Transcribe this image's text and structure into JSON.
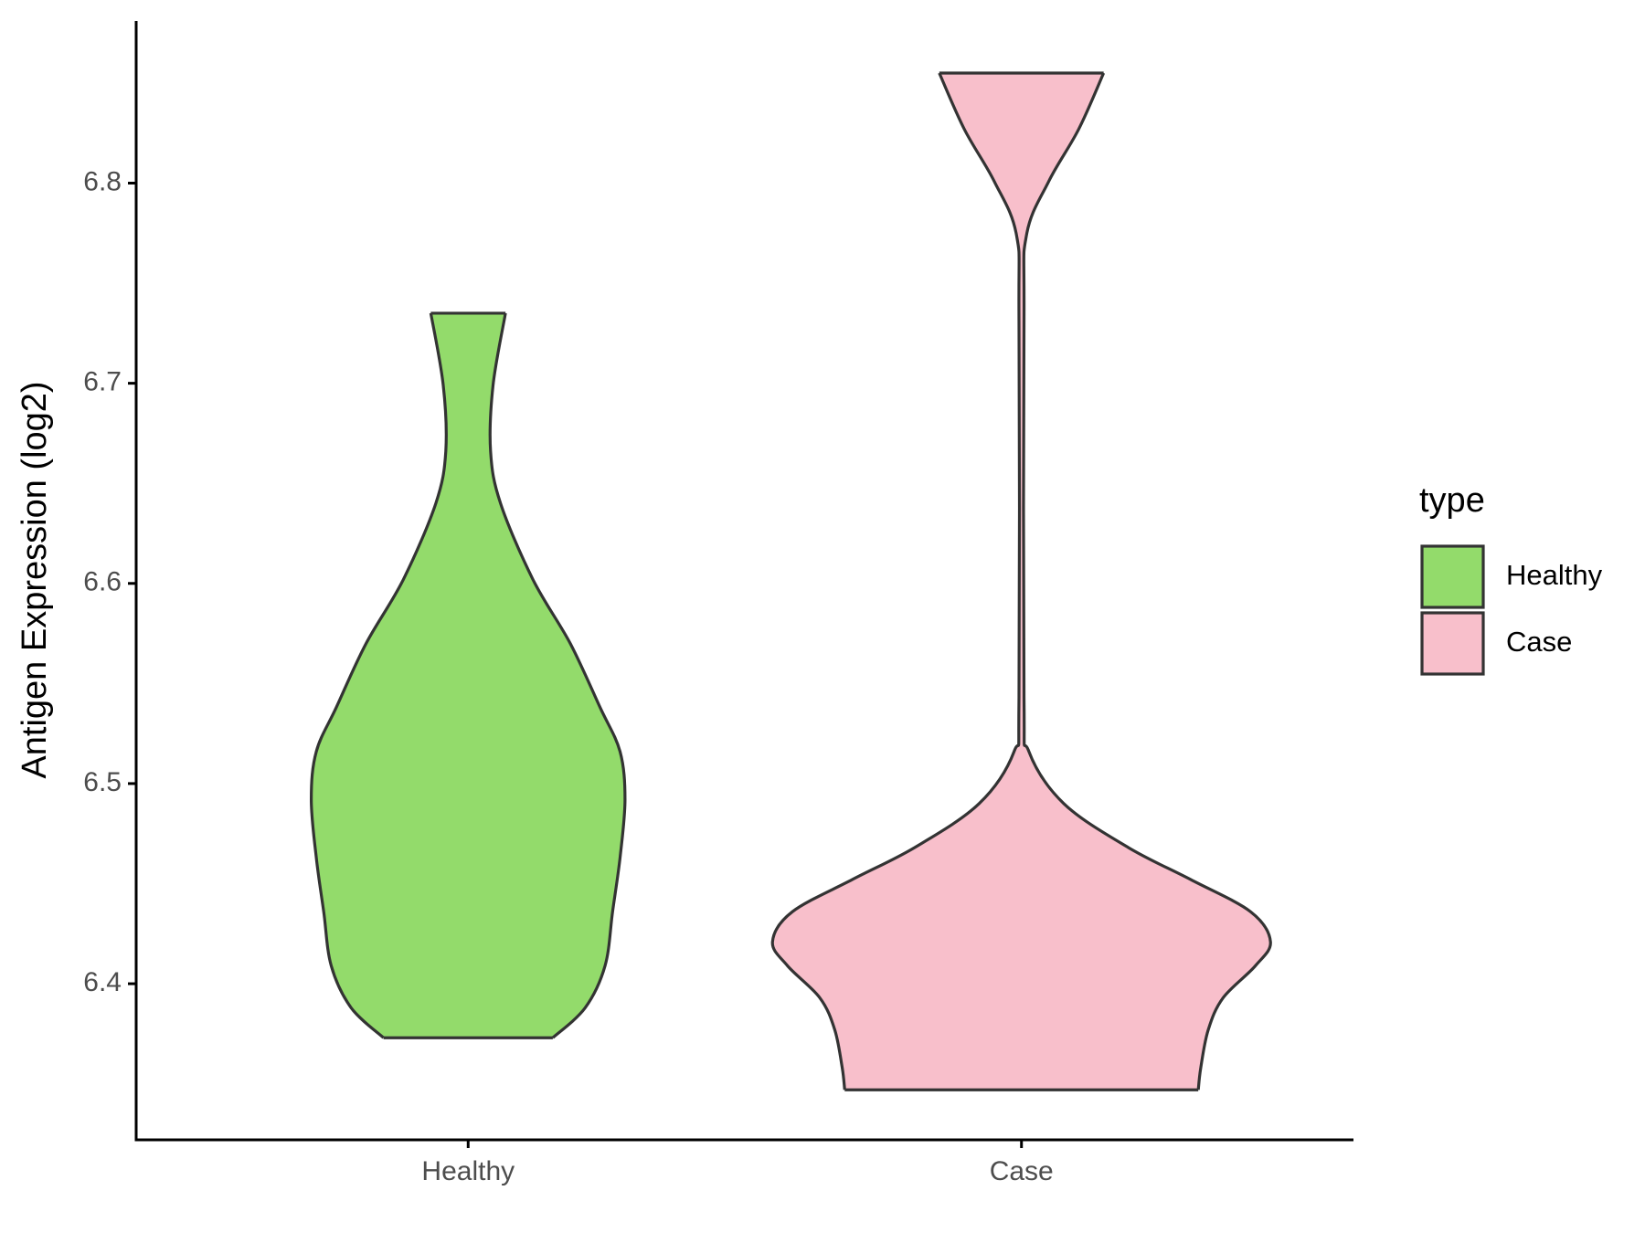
{
  "chart_data": {
    "type": "violin",
    "y_label": "Antigen Expression (log2)",
    "legend_title": "type",
    "categories": [
      "Healthy",
      "Case"
    ],
    "ylim": [
      6.322,
      6.881
    ],
    "yticks": [
      6.4,
      6.5,
      6.6,
      6.7,
      6.8
    ],
    "grid": false,
    "legend": "right",
    "series": [
      {
        "name": "Healthy",
        "color": "#93db6b",
        "y": [
          6.373,
          6.388,
          6.409,
          6.436,
          6.463,
          6.492,
          6.516,
          6.538,
          6.57,
          6.602,
          6.64,
          6.666,
          6.699,
          6.735
        ],
        "width": [
          0.34,
          0.47,
          0.55,
          0.58,
          0.61,
          0.63,
          0.61,
          0.53,
          0.41,
          0.26,
          0.13,
          0.09,
          0.1,
          0.15
        ]
      },
      {
        "name": "Case",
        "color": "#f8bfcb",
        "y": [
          6.347,
          6.358,
          6.377,
          6.393,
          6.409,
          6.421,
          6.436,
          6.452,
          6.468,
          6.49,
          6.516,
          6.543,
          6.731,
          6.774,
          6.801,
          6.827,
          6.855
        ],
        "width": [
          0.71,
          0.72,
          0.75,
          0.81,
          0.94,
          1.0,
          0.92,
          0.68,
          0.43,
          0.17,
          0.03,
          0.01,
          0.01,
          0.02,
          0.11,
          0.23,
          0.33
        ]
      }
    ]
  }
}
